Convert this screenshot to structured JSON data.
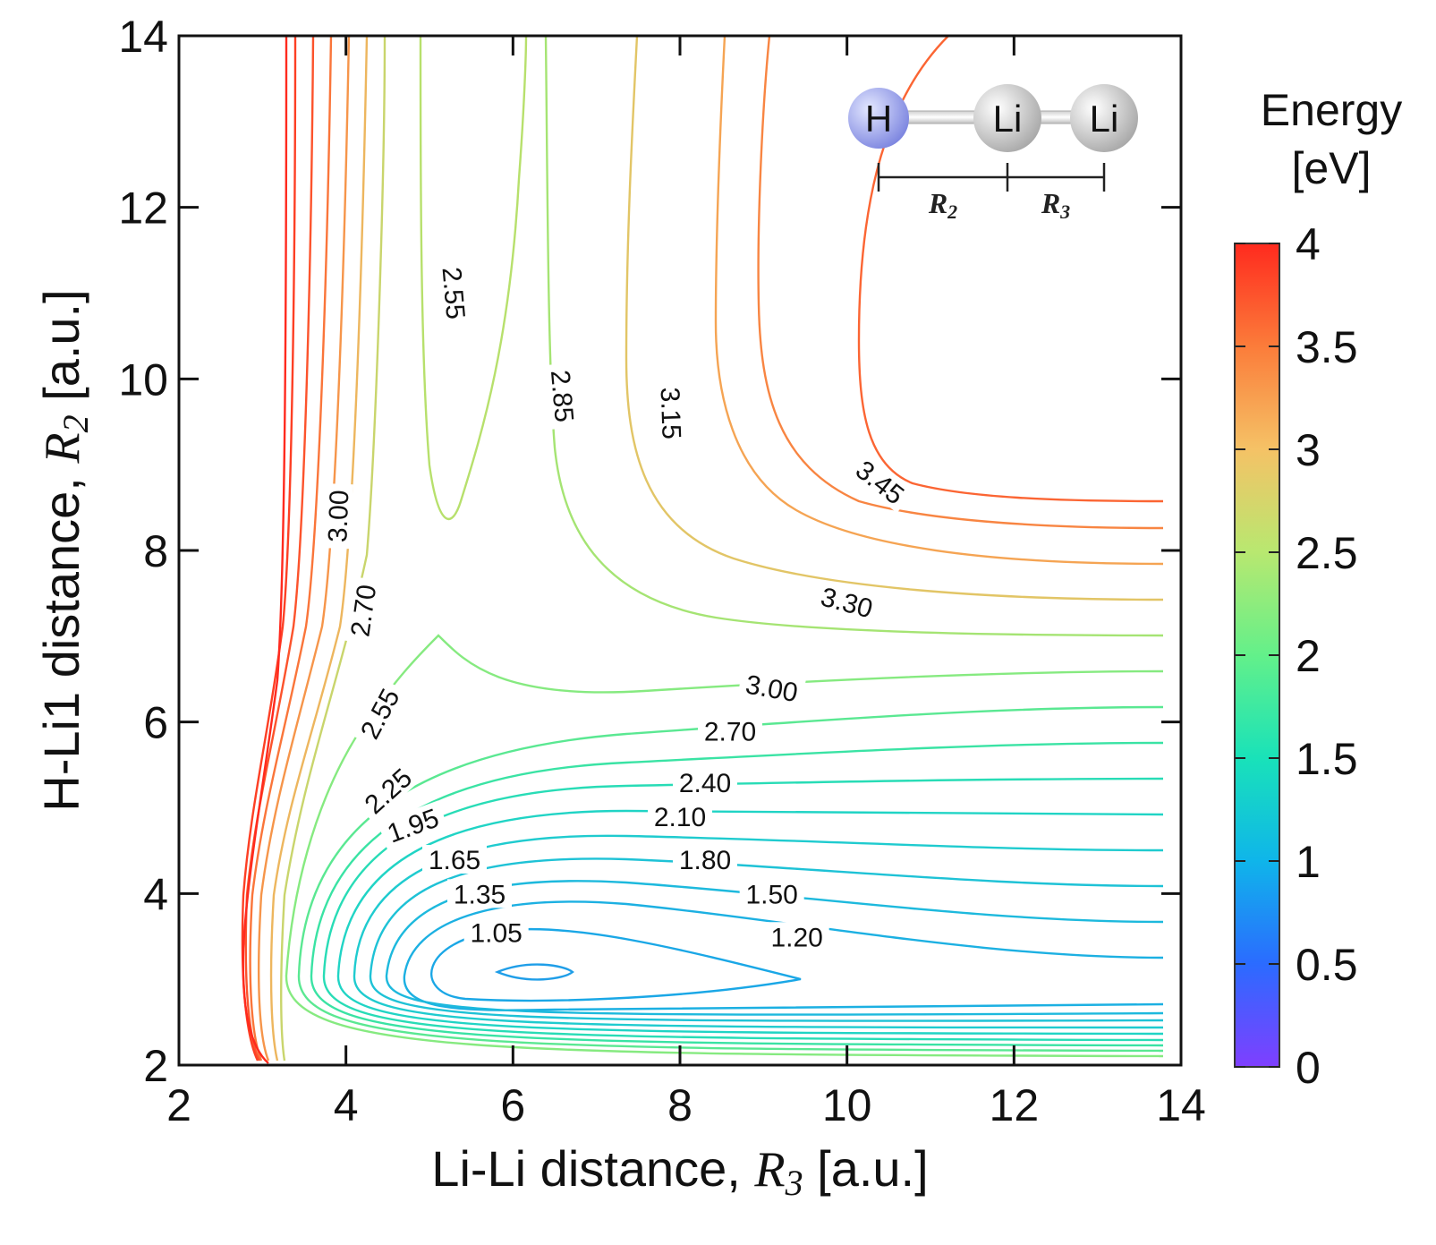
{
  "chart_data": {
    "type": "contour",
    "title": "",
    "xlabel": {
      "prefix": "Li-Li distance, ",
      "symbol": "R",
      "subscript": "3",
      "suffix": " [a.u.]"
    },
    "ylabel": {
      "prefix": "H-Li1 distance, ",
      "symbol": "R",
      "subscript": "2",
      "suffix": " [a.u.]"
    },
    "xlim": [
      2,
      14
    ],
    "ylim": [
      2,
      14
    ],
    "xticks": [
      "2",
      "4",
      "6",
      "8",
      "10",
      "12",
      "14"
    ],
    "yticks": [
      "2",
      "4",
      "6",
      "8",
      "10",
      "12",
      "14"
    ],
    "colorbar": {
      "title_line1": "Energy",
      "title_line2": "[eV]",
      "range": [
        0,
        4
      ],
      "ticks": [
        "0",
        "0.5",
        "1",
        "1.5",
        "2",
        "2.5",
        "3",
        "3.5",
        "4"
      ],
      "colormap": [
        "#7f3fff",
        "#2b6bff",
        "#0fb5ea",
        "#19e2b9",
        "#63f08a",
        "#b8e870",
        "#f5c266",
        "#fb7c3a",
        "#ff2a1e"
      ]
    },
    "contour_labels": [
      {
        "text": "1.05",
        "x": 5.8,
        "y": 3.55,
        "rot": 0
      },
      {
        "text": "1.20",
        "x": 9.4,
        "y": 3.5,
        "rot": 0
      },
      {
        "text": "1.35",
        "x": 5.6,
        "y": 4.0,
        "rot": 0
      },
      {
        "text": "1.50",
        "x": 9.1,
        "y": 4.0,
        "rot": 0
      },
      {
        "text": "1.65",
        "x": 5.3,
        "y": 4.4,
        "rot": 0
      },
      {
        "text": "1.80",
        "x": 8.3,
        "y": 4.4,
        "rot": 0
      },
      {
        "text": "1.95",
        "x": 4.8,
        "y": 4.8,
        "rot": -20
      },
      {
        "text": "2.10",
        "x": 8.0,
        "y": 4.9,
        "rot": 0
      },
      {
        "text": "2.25",
        "x": 4.5,
        "y": 5.2,
        "rot": -42
      },
      {
        "text": "2.40",
        "x": 8.3,
        "y": 5.3,
        "rot": 0
      },
      {
        "text": "2.55",
        "x": 4.4,
        "y": 6.1,
        "rot": -62
      },
      {
        "text": "2.70",
        "x": 8.6,
        "y": 5.9,
        "rot": 0
      },
      {
        "text": "2.70",
        "x": 4.2,
        "y": 7.3,
        "rot": -82
      },
      {
        "text": "3.00",
        "x": 3.9,
        "y": 8.4,
        "rot": -88
      },
      {
        "text": "3.00",
        "x": 9.1,
        "y": 6.4,
        "rot": 10
      },
      {
        "text": "3.30",
        "x": 10.0,
        "y": 7.4,
        "rot": 15
      },
      {
        "text": "2.55",
        "x": 5.3,
        "y": 11.0,
        "rot": 85
      },
      {
        "text": "2.85",
        "x": 6.6,
        "y": 9.8,
        "rot": 85
      },
      {
        "text": "3.15",
        "x": 7.9,
        "y": 9.6,
        "rot": 88
      },
      {
        "text": "3.45",
        "x": 10.4,
        "y": 8.8,
        "rot": 38
      }
    ],
    "inset": {
      "atoms": [
        "H",
        "Li",
        "Li"
      ],
      "bonds": [
        {
          "symbol": "R",
          "subscript": "2"
        },
        {
          "symbol": "R",
          "subscript": "3"
        }
      ]
    }
  }
}
